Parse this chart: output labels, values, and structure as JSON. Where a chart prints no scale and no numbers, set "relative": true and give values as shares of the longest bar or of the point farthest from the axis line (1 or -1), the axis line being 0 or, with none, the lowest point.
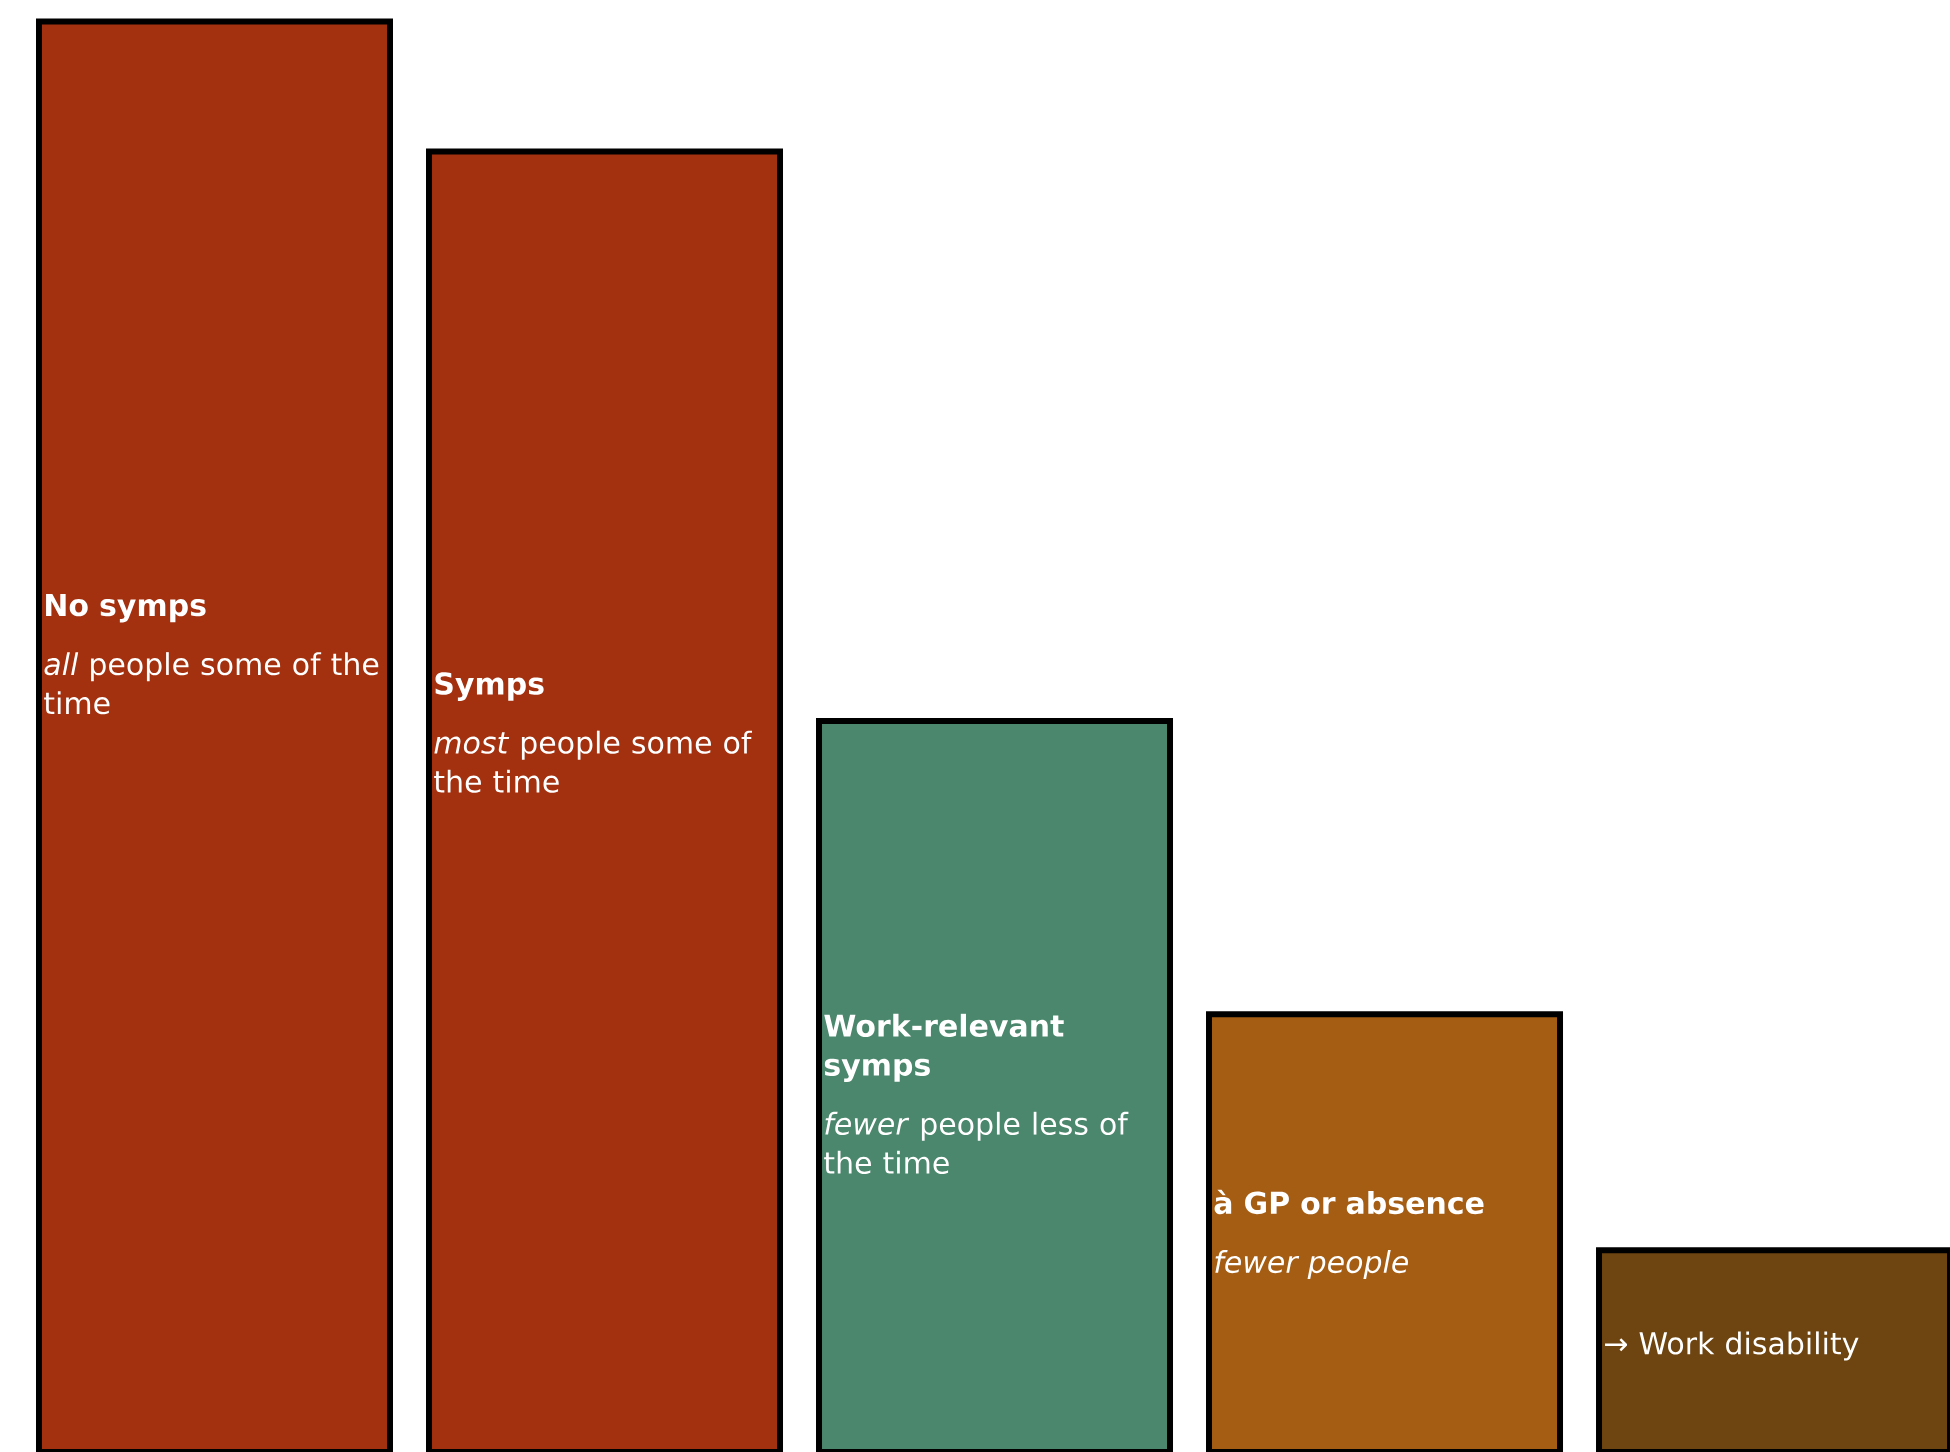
{
  "chart_data": {
    "type": "bar",
    "relative": true,
    "categories": [
      "No  symps",
      "Symps",
      "Work-relevant symps",
      "à GP or absence",
      "→ Work disability"
    ],
    "values": [
      1,
      0.909,
      0.511,
      0.306,
      0.141
    ],
    "colors": [
      "#a3300f",
      "#a3300f",
      "#4b876c",
      "#a55d14",
      "#6e4410"
    ],
    "annotations": [
      "*all* people some of the time",
      "*most* people some of the time",
      "*fewer* people less of the time",
      "*fewer people*"
    ]
  }
}
